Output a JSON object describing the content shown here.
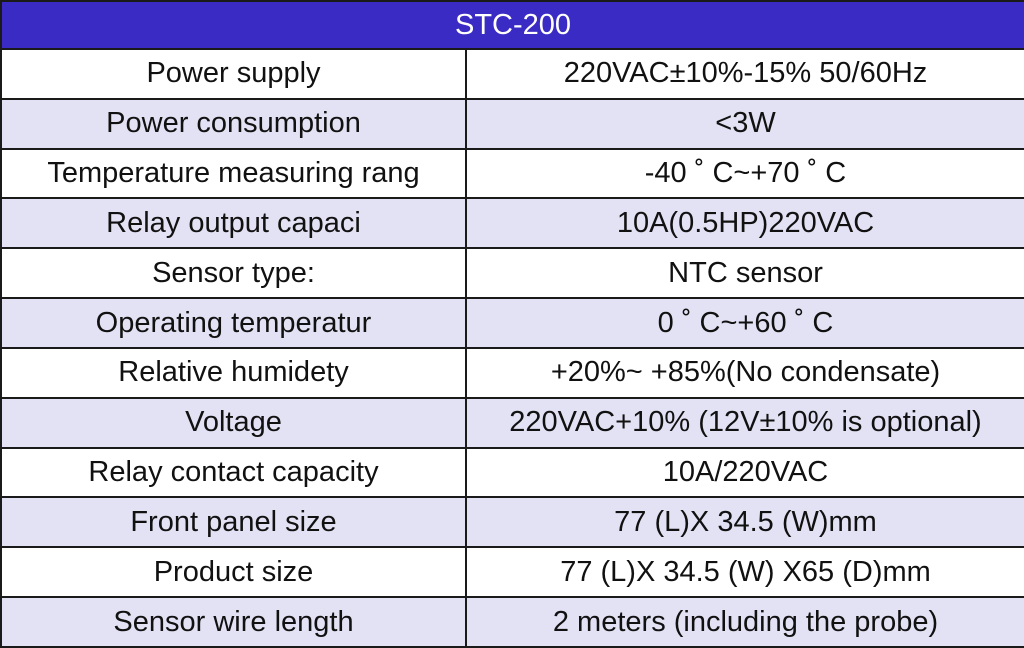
{
  "title": "STC-200",
  "colors": {
    "header_bg": "#3a2bc4",
    "header_text": "#ffffff",
    "row_odd": "#ffffff",
    "row_even": "#e3e2f4",
    "border": "#1a1a1a"
  },
  "rows": [
    {
      "label": "Power supply",
      "value": "220VAC±10%-15% 50/60Hz"
    },
    {
      "label": "Power consumption",
      "value": "<3W"
    },
    {
      "label": "Temperature measuring rang",
      "value": "-40 ˚ C~+70 ˚ C"
    },
    {
      "label": "Relay output capaci",
      "value": "10A(0.5HP)220VAC"
    },
    {
      "label": "Sensor type:",
      "value": "NTC sensor"
    },
    {
      "label": "Operating temperatur",
      "value": "0 ˚ C~+60 ˚ C"
    },
    {
      "label": "Relative humidety",
      "value": "+20%~ +85%(No condensate)"
    },
    {
      "label": "Voltage",
      "value": "220VAC+10% (12V±10% is optional)"
    },
    {
      "label": "Relay contact capacity",
      "value": "10A/220VAC"
    },
    {
      "label": "Front panel size",
      "value": "77 (L)X 34.5 (W)mm"
    },
    {
      "label": "Product size",
      "value": "77 (L)X 34.5 (W) X65 (D)mm"
    },
    {
      "label": "Sensor wire length",
      "value": "2 meters (including the probe)"
    }
  ]
}
